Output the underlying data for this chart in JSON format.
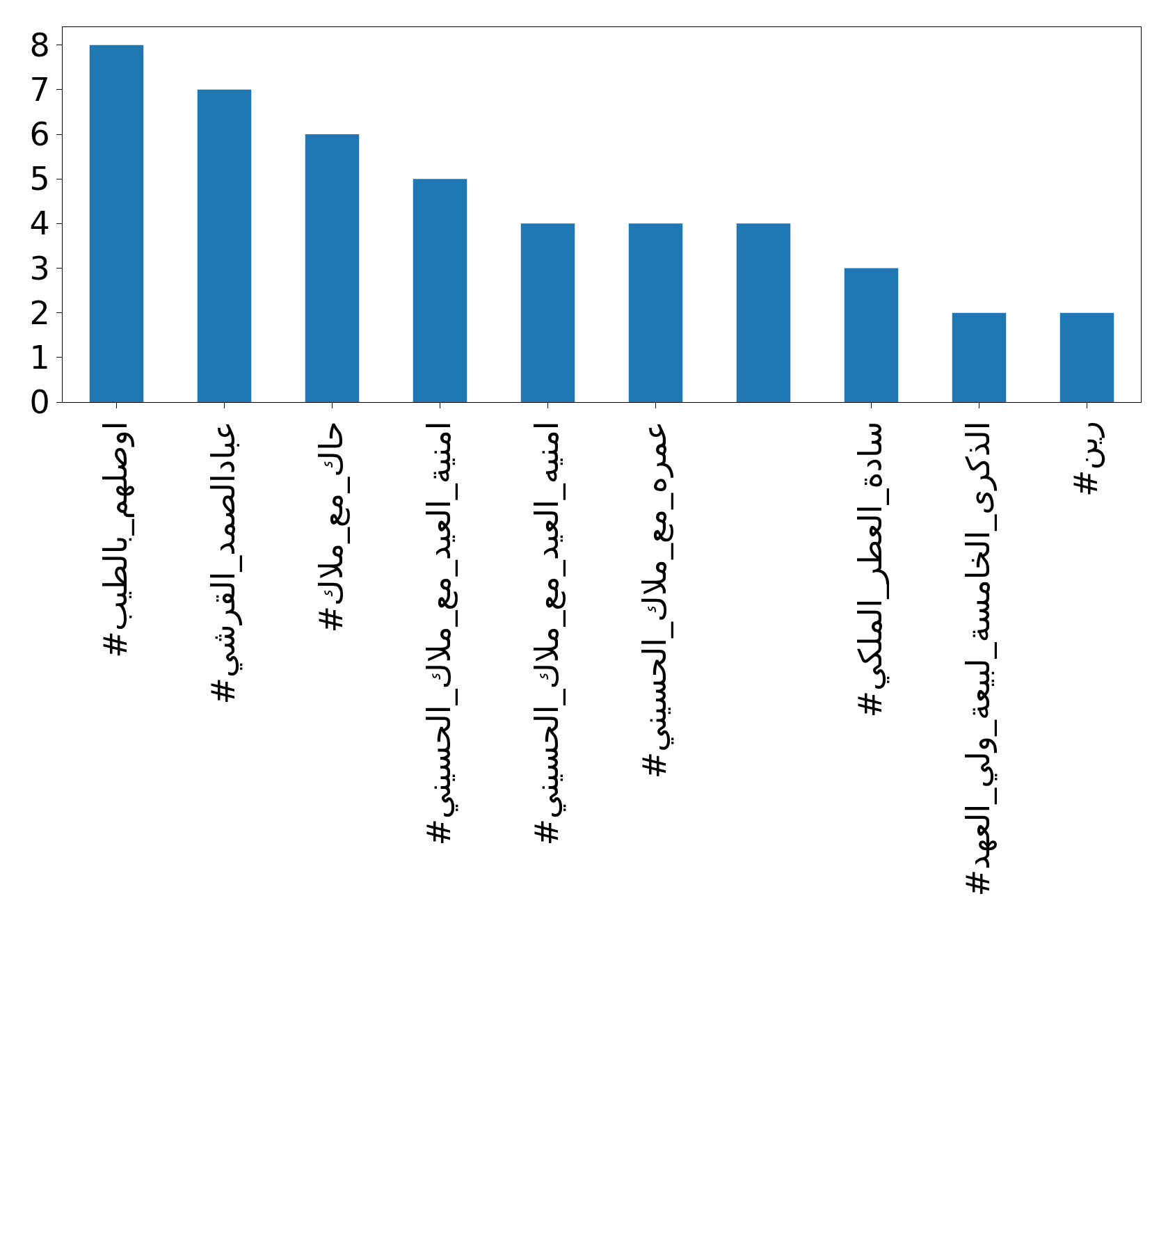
{
  "chart_data": {
    "type": "bar",
    "categories": [
      "#اوصلهم_بالطيب",
      "#عبادالصمد_القرشي",
      "#حاك_مع_ملاك",
      "#امنية_العيد_مع_ملاك_الحسيني",
      "#امنيه_العيد_مع_ملاك_الحسيني",
      "#عمره_مع_ملاك_الحسيني",
      null,
      "#سادة_العطر_الملكي",
      "#الذكرى_الخامسة_لبيعة_ولي_العهد",
      "#رين"
    ],
    "values": [
      8,
      7,
      6,
      5,
      4,
      4,
      4,
      3,
      2,
      2
    ],
    "color": "#1f77b4",
    "ylim": [
      0,
      8.4
    ],
    "yticks": [
      0,
      1,
      2,
      3,
      4,
      5,
      6,
      7,
      8
    ]
  }
}
